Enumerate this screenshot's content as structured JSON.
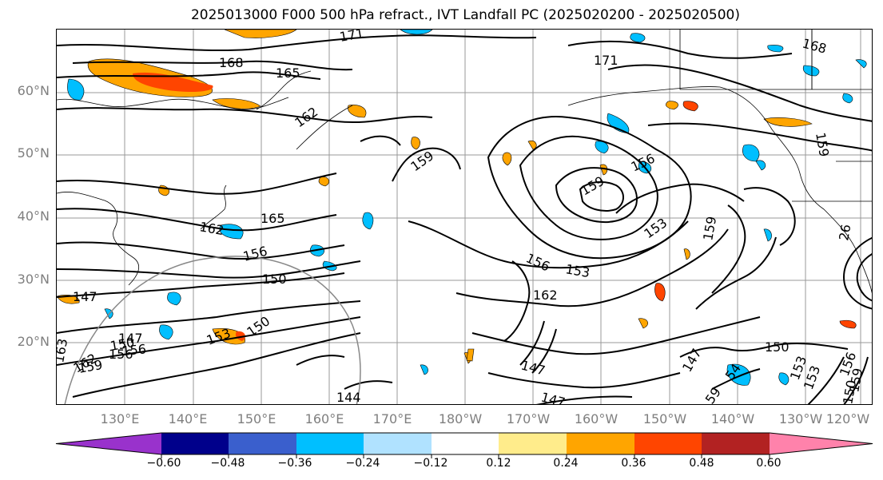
{
  "title": "2025013000 F000 500 hPa refract., IVT Landfall PC (2025020200 - 2025020500)",
  "lat_labels": [
    "60°N",
    "50°N",
    "40°N",
    "30°N",
    "20°N"
  ],
  "lon_labels": [
    "130°E",
    "140°E",
    "150°E",
    "160°E",
    "170°E",
    "180°W",
    "170°W",
    "160°W",
    "150°W",
    "140°W",
    "130°W",
    "120°W"
  ],
  "contour_labels": [
    "171",
    "168",
    "165",
    "162",
    "159",
    "156",
    "153",
    "150",
    "147",
    "144",
    "171",
    "168",
    "162",
    "165",
    "156",
    "159",
    "156",
    "153",
    "159",
    "162",
    "147",
    "150",
    "153",
    "147",
    "150",
    "153",
    "156",
    "159",
    "150",
    "147",
    "153",
    "150",
    "156",
    "159",
    "163",
    "147",
    "156",
    "59",
    "54",
    "159",
    "162",
    "26"
  ],
  "colorbar": {
    "ticks": [
      "−0.60",
      "−0.48",
      "−0.36",
      "−0.24",
      "−0.12",
      "0.12",
      "0.24",
      "0.36",
      "0.48",
      "0.60"
    ],
    "colors": [
      "#9932cc",
      "#00008b",
      "#3a5fcd",
      "#00bfff",
      "#b0e2ff",
      "#ffffff",
      "#ffec8b",
      "#ffa500",
      "#ff4500",
      "#b22222",
      "#ff82ab"
    ],
    "extend": "both"
  }
}
